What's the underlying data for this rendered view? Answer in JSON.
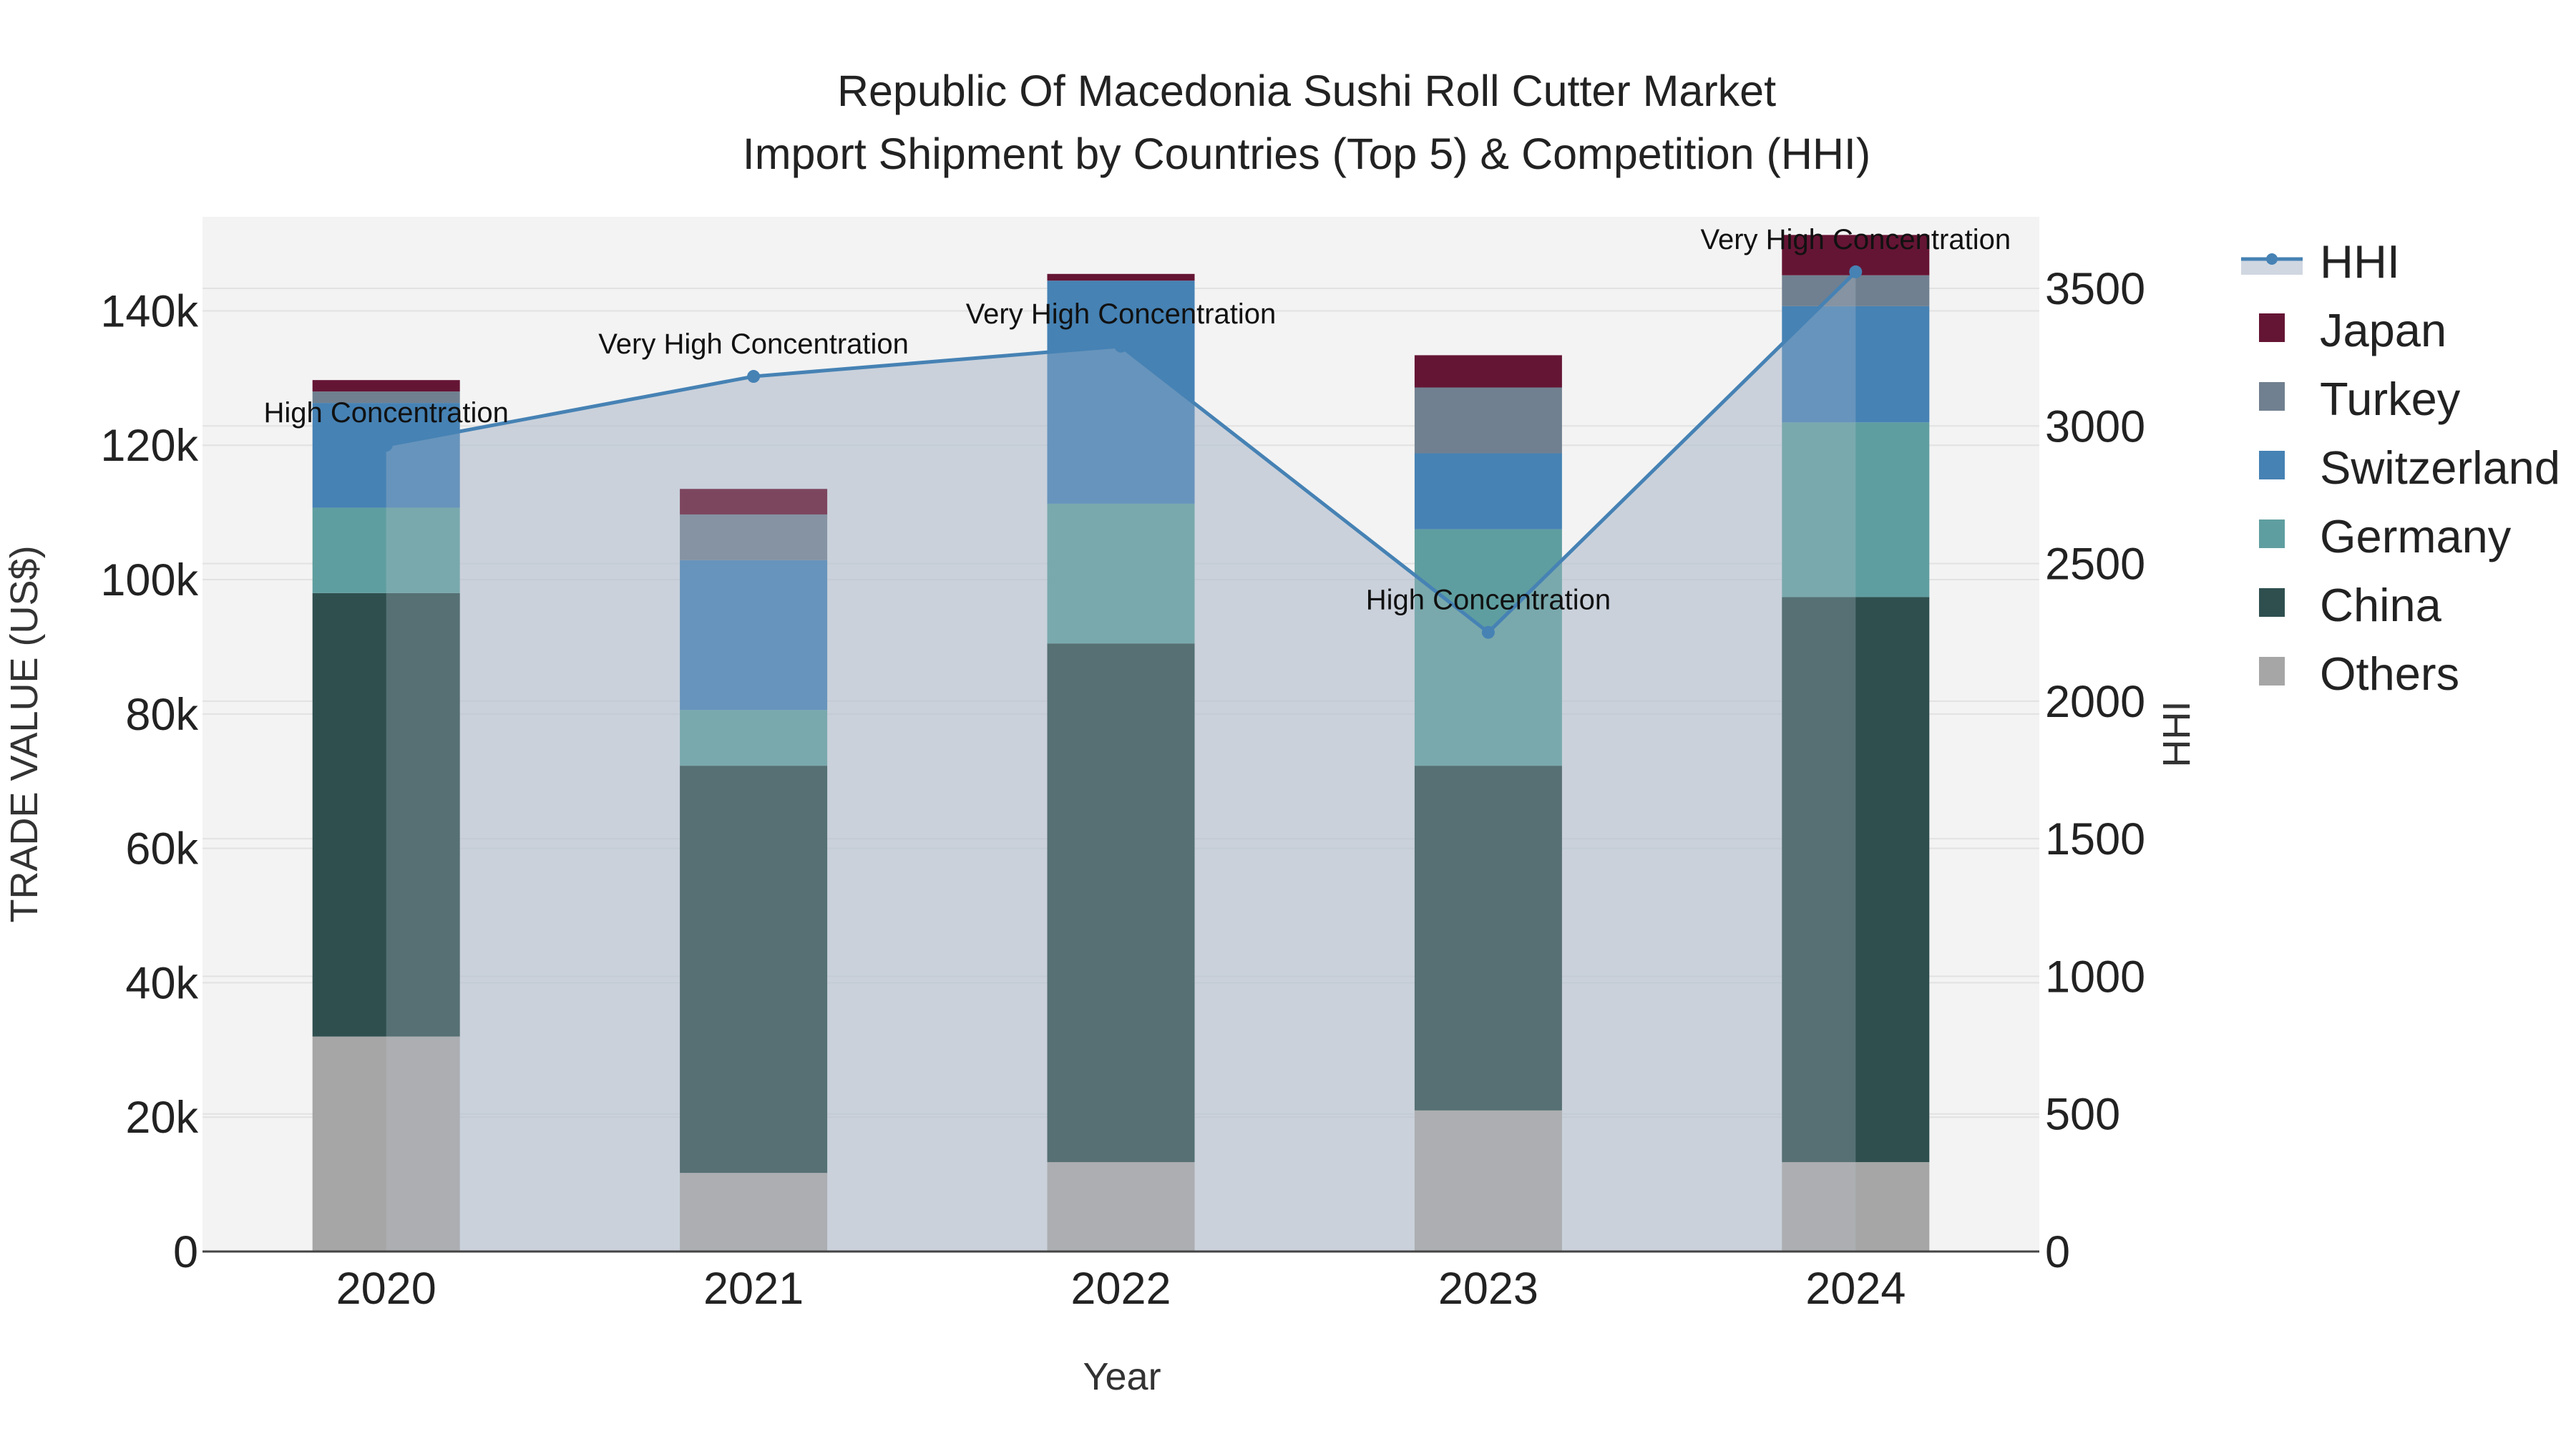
{
  "chart_data": {
    "type": "bar",
    "stacked": true,
    "title": "Republic Of Macedonia Sushi Roll Cutter Market",
    "subtitle": "Import Shipment by Countries (Top 5) & Competition (HHI)",
    "xlabel": "Year",
    "ylabel": "TRADE VALUE (US$)",
    "y2label": "HHI",
    "categories": [
      "2020",
      "2021",
      "2022",
      "2023",
      "2024"
    ],
    "ylim": [
      0,
      154000
    ],
    "y2lim": [
      0,
      3760
    ],
    "yticks": [
      0,
      20000,
      40000,
      60000,
      80000,
      100000,
      120000,
      140000
    ],
    "ytick_labels": [
      "0",
      "20k",
      "40k",
      "60k",
      "80k",
      "100k",
      "120k",
      "140k"
    ],
    "y2ticks": [
      0,
      500,
      1000,
      1500,
      2000,
      2500,
      3000,
      3500
    ],
    "y2tick_labels": [
      "0",
      "500",
      "1000",
      "1500",
      "2000",
      "2500",
      "3000",
      "3500"
    ],
    "series": [
      {
        "name": "Others",
        "color": "#a6a6a6",
        "values": [
          32000,
          11700,
          13300,
          21000,
          13300
        ]
      },
      {
        "name": "China",
        "color": "#2f4f4f",
        "values": [
          66000,
          60600,
          77200,
          51300,
          84100
        ]
      },
      {
        "name": "Germany",
        "color": "#5f9ea0",
        "values": [
          12700,
          8300,
          20800,
          35200,
          26000
        ]
      },
      {
        "name": "Switzerland",
        "color": "#4682b4",
        "values": [
          15600,
          22300,
          33200,
          11300,
          17300
        ]
      },
      {
        "name": "Turkey",
        "color": "#708090",
        "values": [
          1700,
          6800,
          0,
          9800,
          4600
        ]
      },
      {
        "name": "Japan",
        "color": "#651534",
        "values": [
          1700,
          3800,
          1000,
          4800,
          6000
        ]
      }
    ],
    "hhi": {
      "name": "HHI",
      "color": "#4682b4",
      "values": [
        2930,
        3180,
        3290,
        2250,
        3560
      ],
      "annotations": [
        "High Concentration",
        "Very High Concentration",
        "Very High Concentration",
        "High Concentration",
        "Very High Concentration"
      ]
    },
    "legend_order": [
      "HHI",
      "Japan",
      "Turkey",
      "Switzerland",
      "Germany",
      "China",
      "Others"
    ],
    "legend_position": "right",
    "grid": true
  }
}
